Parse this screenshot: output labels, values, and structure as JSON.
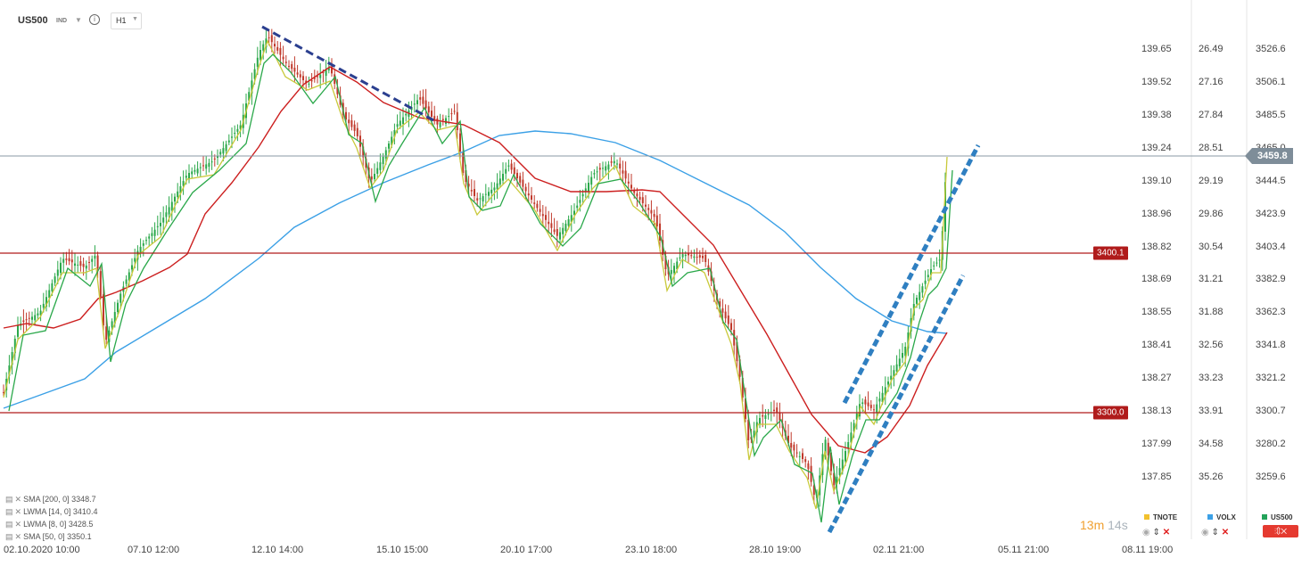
{
  "header": {
    "symbol": "US500",
    "type": "IND",
    "timeframe": "H1"
  },
  "axes": {
    "tnote": [
      "139.65",
      "139.52",
      "139.38",
      "139.24",
      "139.10",
      "138.96",
      "138.82",
      "138.69",
      "138.55",
      "138.41",
      "138.27",
      "138.13",
      "137.99",
      "137.85"
    ],
    "volx": [
      "26.49",
      "27.16",
      "27.84",
      "28.51",
      "29.19",
      "29.86",
      "30.54",
      "31.21",
      "31.88",
      "32.56",
      "33.23",
      "33.91",
      "34.58",
      "35.26"
    ],
    "us500": [
      "3526.6",
      "3506.1",
      "3485.5",
      "3465.0",
      "3444.5",
      "3423.9",
      "3403.4",
      "3382.9",
      "3362.3",
      "3341.8",
      "3321.2",
      "3300.7",
      "3280.2",
      "3259.6"
    ]
  },
  "current_price": "3459.8",
  "levels": [
    {
      "label": "3400.1"
    },
    {
      "label": "3300.0"
    }
  ],
  "xaxis": [
    "02.10.2020  10:00",
    "07.10  12:00",
    "12.10  14:00",
    "15.10  15:00",
    "20.10  17:00",
    "23.10  18:00",
    "28.10  19:00",
    "02.11  21:00",
    "05.11  21:00",
    "08.11  19:00"
  ],
  "indicators": [
    {
      "text": "SMA  [200,  0]  3348.7",
      "color": "#3ba0e6"
    },
    {
      "text": "LWMA  [14,  0]  3410.4",
      "color": "#cc1f1f"
    },
    {
      "text": "LWMA  [8,  0]  3428.5",
      "color": "#c9c93a"
    },
    {
      "text": "SMA  [50,  0]  3350.1",
      "color": "#2aa84a"
    }
  ],
  "timer": {
    "minutes": "13m",
    "seconds": "14s"
  },
  "tabs": [
    {
      "label": "TNOTE",
      "color": "#f2c12e"
    },
    {
      "label": "VOLX",
      "color": "#3ba0e6"
    },
    {
      "label": "US500",
      "color": "#24a35a"
    }
  ],
  "colors": {
    "up": "#2aa84a",
    "down": "#c0392b",
    "sma200": "#3ba0e6",
    "lwma14": "#cc1f1f",
    "lwma8": "#c9c93a",
    "sma50": "#2aa84a",
    "level": "#b01b1b",
    "channel": "#2f7fc1",
    "trend": "#2b3f8f"
  }
}
